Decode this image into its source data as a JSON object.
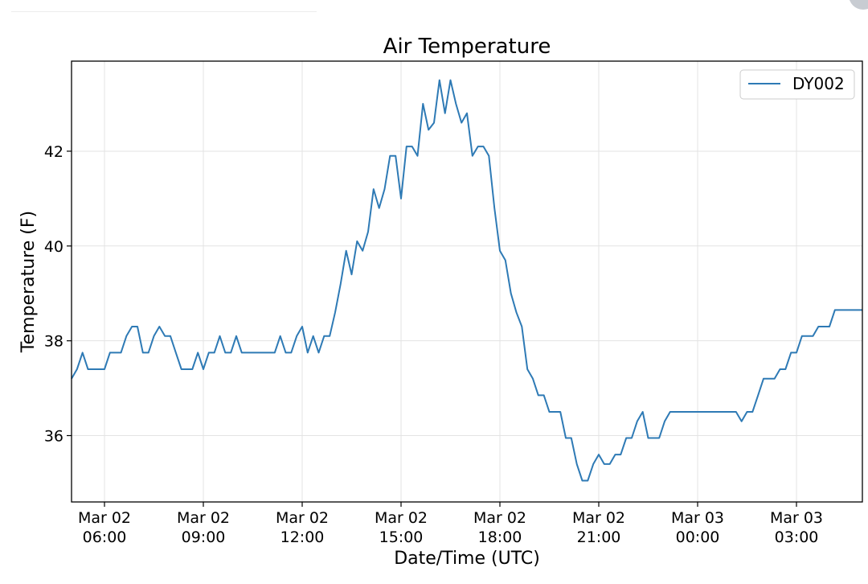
{
  "chart_data": {
    "type": "line",
    "title": "Air Temperature",
    "xlabel": "Date/Time (UTC)",
    "ylabel": "Temperature (F)",
    "x_range": [
      "2024-03-02T05:00",
      "2024-03-03T05:00"
    ],
    "ylim": [
      34.6,
      43.9
    ],
    "grid": true,
    "legend_position": "top-right",
    "x_ticks": [
      {
        "t": "2024-03-02T06:00",
        "line1": "Mar 02",
        "line2": "06:00"
      },
      {
        "t": "2024-03-02T09:00",
        "line1": "Mar 02",
        "line2": "09:00"
      },
      {
        "t": "2024-03-02T12:00",
        "line1": "Mar 02",
        "line2": "12:00"
      },
      {
        "t": "2024-03-02T15:00",
        "line1": "Mar 02",
        "line2": "15:00"
      },
      {
        "t": "2024-03-02T18:00",
        "line1": "Mar 02",
        "line2": "18:00"
      },
      {
        "t": "2024-03-02T21:00",
        "line1": "Mar 02",
        "line2": "21:00"
      },
      {
        "t": "2024-03-03T00:00",
        "line1": "Mar 03",
        "line2": "00:00"
      },
      {
        "t": "2024-03-03T03:00",
        "line1": "Mar 03",
        "line2": "03:00"
      }
    ],
    "y_ticks": [
      36,
      38,
      40,
      42
    ],
    "series": [
      {
        "name": "DY002",
        "color": "#2e7ab5",
        "points": [
          [
            "2024-03-02T05:00",
            37.2
          ],
          [
            "2024-03-02T05:10",
            37.4
          ],
          [
            "2024-03-02T05:20",
            37.75
          ],
          [
            "2024-03-02T05:30",
            37.4
          ],
          [
            "2024-03-02T05:40",
            37.4
          ],
          [
            "2024-03-02T05:50",
            37.4
          ],
          [
            "2024-03-02T06:00",
            37.4
          ],
          [
            "2024-03-02T06:10",
            37.75
          ],
          [
            "2024-03-02T06:20",
            37.75
          ],
          [
            "2024-03-02T06:30",
            37.75
          ],
          [
            "2024-03-02T06:40",
            38.1
          ],
          [
            "2024-03-02T06:50",
            38.3
          ],
          [
            "2024-03-02T07:00",
            38.3
          ],
          [
            "2024-03-02T07:10",
            37.75
          ],
          [
            "2024-03-02T07:20",
            37.75
          ],
          [
            "2024-03-02T07:30",
            38.1
          ],
          [
            "2024-03-02T07:40",
            38.3
          ],
          [
            "2024-03-02T07:50",
            38.1
          ],
          [
            "2024-03-02T08:00",
            38.1
          ],
          [
            "2024-03-02T08:10",
            37.75
          ],
          [
            "2024-03-02T08:20",
            37.4
          ],
          [
            "2024-03-02T08:30",
            37.4
          ],
          [
            "2024-03-02T08:40",
            37.4
          ],
          [
            "2024-03-02T08:50",
            37.75
          ],
          [
            "2024-03-02T09:00",
            37.4
          ],
          [
            "2024-03-02T09:10",
            37.75
          ],
          [
            "2024-03-02T09:20",
            37.75
          ],
          [
            "2024-03-02T09:30",
            38.1
          ],
          [
            "2024-03-02T09:40",
            37.75
          ],
          [
            "2024-03-02T09:50",
            37.75
          ],
          [
            "2024-03-02T10:00",
            38.1
          ],
          [
            "2024-03-02T10:10",
            37.75
          ],
          [
            "2024-03-02T10:20",
            37.75
          ],
          [
            "2024-03-02T10:30",
            37.75
          ],
          [
            "2024-03-02T10:40",
            37.75
          ],
          [
            "2024-03-02T10:50",
            37.75
          ],
          [
            "2024-03-02T11:00",
            37.75
          ],
          [
            "2024-03-02T11:10",
            37.75
          ],
          [
            "2024-03-02T11:20",
            38.1
          ],
          [
            "2024-03-02T11:30",
            37.75
          ],
          [
            "2024-03-02T11:40",
            37.75
          ],
          [
            "2024-03-02T11:50",
            38.1
          ],
          [
            "2024-03-02T12:00",
            38.3
          ],
          [
            "2024-03-02T12:10",
            37.75
          ],
          [
            "2024-03-02T12:20",
            38.1
          ],
          [
            "2024-03-02T12:30",
            37.75
          ],
          [
            "2024-03-02T12:40",
            38.1
          ],
          [
            "2024-03-02T12:50",
            38.1
          ],
          [
            "2024-03-02T13:00",
            38.6
          ],
          [
            "2024-03-02T13:10",
            39.2
          ],
          [
            "2024-03-02T13:20",
            39.9
          ],
          [
            "2024-03-02T13:30",
            39.4
          ],
          [
            "2024-03-02T13:40",
            40.1
          ],
          [
            "2024-03-02T13:50",
            39.9
          ],
          [
            "2024-03-02T14:00",
            40.3
          ],
          [
            "2024-03-02T14:10",
            41.2
          ],
          [
            "2024-03-02T14:20",
            40.8
          ],
          [
            "2024-03-02T14:30",
            41.2
          ],
          [
            "2024-03-02T14:40",
            41.9
          ],
          [
            "2024-03-02T14:50",
            41.9
          ],
          [
            "2024-03-02T15:00",
            41.0
          ],
          [
            "2024-03-02T15:10",
            42.1
          ],
          [
            "2024-03-02T15:20",
            42.1
          ],
          [
            "2024-03-02T15:30",
            41.9
          ],
          [
            "2024-03-02T15:40",
            43.0
          ],
          [
            "2024-03-02T15:50",
            42.45
          ],
          [
            "2024-03-02T16:00",
            42.6
          ],
          [
            "2024-03-02T16:10",
            43.5
          ],
          [
            "2024-03-02T16:20",
            42.8
          ],
          [
            "2024-03-02T16:30",
            43.5
          ],
          [
            "2024-03-02T16:40",
            43.0
          ],
          [
            "2024-03-02T16:50",
            42.6
          ],
          [
            "2024-03-02T17:00",
            42.8
          ],
          [
            "2024-03-02T17:10",
            41.9
          ],
          [
            "2024-03-02T17:20",
            42.1
          ],
          [
            "2024-03-02T17:30",
            42.1
          ],
          [
            "2024-03-02T17:40",
            41.9
          ],
          [
            "2024-03-02T17:50",
            40.8
          ],
          [
            "2024-03-02T18:00",
            39.9
          ],
          [
            "2024-03-02T18:10",
            39.7
          ],
          [
            "2024-03-02T18:20",
            39.0
          ],
          [
            "2024-03-02T18:30",
            38.6
          ],
          [
            "2024-03-02T18:40",
            38.3
          ],
          [
            "2024-03-02T18:50",
            37.4
          ],
          [
            "2024-03-02T19:00",
            37.2
          ],
          [
            "2024-03-02T19:10",
            36.85
          ],
          [
            "2024-03-02T19:20",
            36.85
          ],
          [
            "2024-03-02T19:30",
            36.5
          ],
          [
            "2024-03-02T19:40",
            36.5
          ],
          [
            "2024-03-02T19:50",
            36.5
          ],
          [
            "2024-03-02T20:00",
            35.95
          ],
          [
            "2024-03-02T20:10",
            35.95
          ],
          [
            "2024-03-02T20:20",
            35.4
          ],
          [
            "2024-03-02T20:30",
            35.05
          ],
          [
            "2024-03-02T20:40",
            35.05
          ],
          [
            "2024-03-02T20:50",
            35.4
          ],
          [
            "2024-03-02T21:00",
            35.6
          ],
          [
            "2024-03-02T21:10",
            35.4
          ],
          [
            "2024-03-02T21:20",
            35.4
          ],
          [
            "2024-03-02T21:30",
            35.6
          ],
          [
            "2024-03-02T21:40",
            35.6
          ],
          [
            "2024-03-02T21:50",
            35.95
          ],
          [
            "2024-03-02T22:00",
            35.95
          ],
          [
            "2024-03-02T22:10",
            36.3
          ],
          [
            "2024-03-02T22:20",
            36.5
          ],
          [
            "2024-03-02T22:30",
            35.95
          ],
          [
            "2024-03-02T22:40",
            35.95
          ],
          [
            "2024-03-02T22:50",
            35.95
          ],
          [
            "2024-03-02T23:00",
            36.3
          ],
          [
            "2024-03-02T23:10",
            36.5
          ],
          [
            "2024-03-02T23:20",
            36.5
          ],
          [
            "2024-03-02T23:30",
            36.5
          ],
          [
            "2024-03-02T23:40",
            36.5
          ],
          [
            "2024-03-02T23:50",
            36.5
          ],
          [
            "2024-03-03T00:00",
            36.5
          ],
          [
            "2024-03-03T00:10",
            36.5
          ],
          [
            "2024-03-03T00:20",
            36.5
          ],
          [
            "2024-03-03T00:30",
            36.5
          ],
          [
            "2024-03-03T00:40",
            36.5
          ],
          [
            "2024-03-03T00:50",
            36.5
          ],
          [
            "2024-03-03T01:00",
            36.5
          ],
          [
            "2024-03-03T01:10",
            36.5
          ],
          [
            "2024-03-03T01:20",
            36.3
          ],
          [
            "2024-03-03T01:30",
            36.5
          ],
          [
            "2024-03-03T01:40",
            36.5
          ],
          [
            "2024-03-03T01:50",
            36.85
          ],
          [
            "2024-03-03T02:00",
            37.2
          ],
          [
            "2024-03-03T02:10",
            37.2
          ],
          [
            "2024-03-03T02:20",
            37.2
          ],
          [
            "2024-03-03T02:30",
            37.4
          ],
          [
            "2024-03-03T02:40",
            37.4
          ],
          [
            "2024-03-03T02:50",
            37.75
          ],
          [
            "2024-03-03T03:00",
            37.75
          ],
          [
            "2024-03-03T03:10",
            38.1
          ],
          [
            "2024-03-03T03:20",
            38.1
          ],
          [
            "2024-03-03T03:30",
            38.1
          ],
          [
            "2024-03-03T03:40",
            38.3
          ],
          [
            "2024-03-03T03:50",
            38.3
          ],
          [
            "2024-03-03T04:00",
            38.3
          ],
          [
            "2024-03-03T04:10",
            38.65
          ],
          [
            "2024-03-03T04:20",
            38.65
          ],
          [
            "2024-03-03T04:30",
            38.65
          ],
          [
            "2024-03-03T04:40",
            38.65
          ],
          [
            "2024-03-03T04:50",
            38.65
          ],
          [
            "2024-03-03T05:00",
            38.65
          ]
        ]
      }
    ]
  }
}
